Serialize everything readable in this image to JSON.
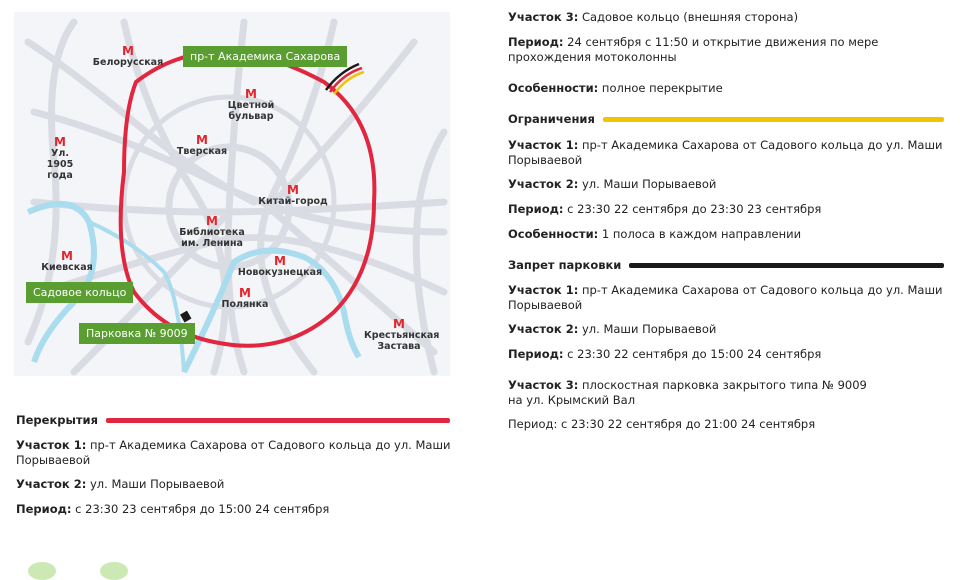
{
  "map": {
    "stations": [
      "Белорусская",
      "Цветной бульвар",
      "Ул. 1905 года",
      "Тверская",
      "Китай-город",
      "Библиотека им. Ленина",
      "Киевская",
      "Новокузнецкая",
      "Полянка",
      "Крестьянская Застава"
    ],
    "metro_icon": "М",
    "tags": {
      "sakharova": "пр-т Академика Сахарова",
      "sadovoe": "Садовое кольцо",
      "parking": "Парковка № 9009"
    },
    "colors": {
      "closure": "#e1263f",
      "restriction": "#f2c400",
      "parking": "#1a1a1a",
      "tag": "#5a9e32",
      "river": "#a8dcee",
      "road": "#d9dce3"
    }
  },
  "left": {
    "heading": "Перекрытия",
    "items": [
      {
        "label": "Участок 1:",
        "text": " пр-т Академика Сахарова от Садового кольца до ул. Маши Порываевой"
      },
      {
        "label": "Участок 2:",
        "text": " ул. Маши Порываевой"
      },
      {
        "label": "Период:",
        "text": " с 23:30 23 сентября до 15:00 24 сентября"
      }
    ]
  },
  "right": {
    "top": [
      {
        "label": "Участок 3:",
        "text": " Садовое кольцо (внешняя сторона)"
      },
      {
        "label": "Период:",
        "text": " 24 сентября с 11:50 и открытие движения по мере прохождения мотоколонны"
      },
      {
        "label": "Особенности:",
        "text": " полное перекрытие"
      }
    ],
    "restrictions": {
      "heading": "Ограничения",
      "items": [
        {
          "label": "Участок 1:",
          "text": " пр-т Академика Сахарова от Садового кольца до ул. Маши Порываевой"
        },
        {
          "label": "Участок 2:",
          "text": " ул. Маши Порываевой"
        },
        {
          "label": "Период:",
          "text": " с 23:30 22 сентября до 23:30 23 сентября"
        },
        {
          "label": "Особенности:",
          "text": " 1 полоса в каждом направлении"
        }
      ]
    },
    "parking": {
      "heading": "Запрет парковки",
      "items": [
        {
          "label": "Участок 1:",
          "text": " пр-т Академика Сахарова от Садового кольца до ул. Маши Порываевой"
        },
        {
          "label": "Участок 2:",
          "text": " ул. Маши Порываевой"
        },
        {
          "label": "Период:",
          "text": " с 23:30 22 сентября до 15:00 24 сентября"
        },
        {
          "label": "Участок 3:",
          "text": " плоскостная парковка закрытого типа № 9009 на ул. Крымский Вал"
        }
      ],
      "last_period": "Период: с 23:30 22 сентября до 21:00 24 сентября"
    }
  }
}
